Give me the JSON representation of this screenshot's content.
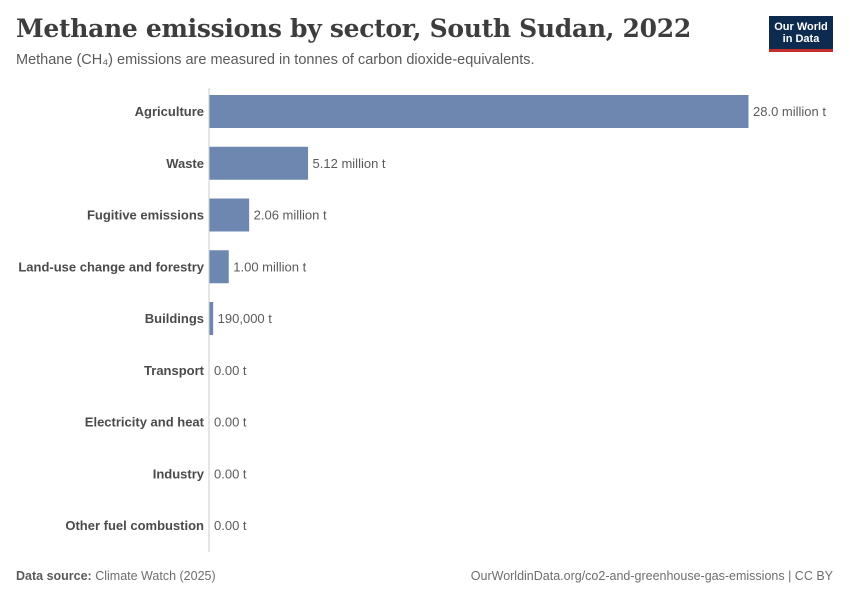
{
  "header": {
    "title": "Methane emissions by sector, South Sudan, 2022",
    "subtitle": "Methane (CH₄) emissions are measured in tonnes of carbon dioxide-equivalents."
  },
  "logo": {
    "line1": "Our World",
    "line2": "in Data",
    "bg_color": "#0d2a4f",
    "accent_color": "#c52e2e"
  },
  "footer": {
    "source_label": "Data source:",
    "source_value": "Climate Watch (2025)",
    "url": "OurWorldinData.org/co2-and-greenhouse-gas-emissions | CC BY"
  },
  "colors": {
    "bar": "#6d87b0",
    "axis": "#cccccc",
    "label": "#4a4a4a",
    "value": "#5b5b5b"
  },
  "chart_data": {
    "type": "bar",
    "orientation": "horizontal",
    "title": "Methane emissions by sector, South Sudan, 2022",
    "unit": "tonnes CO₂e",
    "xlim": [
      0,
      28000000
    ],
    "categories": [
      "Agriculture",
      "Waste",
      "Fugitive emissions",
      "Land-use change and forestry",
      "Buildings",
      "Transport",
      "Electricity and heat",
      "Industry",
      "Other fuel combustion"
    ],
    "values": [
      28000000,
      5120000,
      2060000,
      1000000,
      190000,
      0,
      0,
      0,
      0
    ],
    "value_labels": [
      "28.0 million t",
      "5.12 million t",
      "2.06 million t",
      "1.00 million t",
      "190,000 t",
      "0.00 t",
      "0.00 t",
      "0.00 t",
      "0.00 t"
    ]
  }
}
